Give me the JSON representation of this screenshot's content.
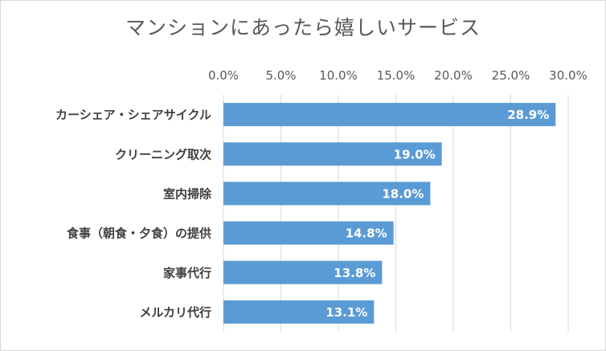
{
  "chart_data": {
    "type": "bar",
    "orientation": "horizontal",
    "title": "マンションにあったら嬉しいサービス",
    "categories": [
      "カーシェア・シェアサイクル",
      "クリーニング取次",
      "室内掃除",
      "食事（朝食・夕食）の提供",
      "家事代行",
      "メルカリ代行"
    ],
    "values": [
      28.9,
      19.0,
      18.0,
      14.8,
      13.8,
      13.1
    ],
    "data_labels": [
      "28.9%",
      "19.0%",
      "18.0%",
      "14.8%",
      "13.8%",
      "13.1%"
    ],
    "xlim": [
      0,
      30
    ],
    "x_ticks": [
      0,
      5,
      10,
      15,
      20,
      25,
      30
    ],
    "x_tick_labels": [
      "0.0%",
      "5.0%",
      "10.0%",
      "15.0%",
      "20.0%",
      "25.0%",
      "30.0%"
    ],
    "x_axis_position": "top",
    "grid": true,
    "legend": false,
    "bar_color": "#5b9bd5",
    "grid_color": "#d9d9d9"
  }
}
